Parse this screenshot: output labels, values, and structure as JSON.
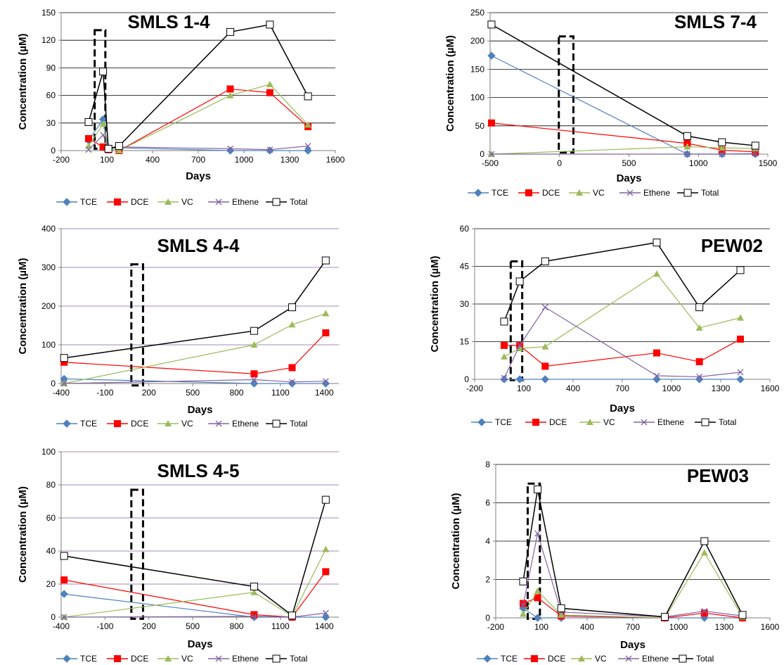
{
  "colors": {
    "TCE": "#4F81BD",
    "DCE": "#FF0000",
    "VC": "#9BBB59",
    "Ethene": "#8064A2",
    "Total": "#000000",
    "gridline_default": "#000000",
    "gridline_purple": "#8064A2"
  },
  "legend": [
    "TCE",
    "DCE",
    "VC",
    "Ethene",
    "Total"
  ],
  "chart_data": [
    {
      "type": "line",
      "title": "SMLS 1-4",
      "xlabel": "Days",
      "ylabel": "Concentration (µM)",
      "xlim": [
        -200,
        1600
      ],
      "ylim": [
        0,
        150
      ],
      "xticks": [
        -200,
        100,
        400,
        700,
        1000,
        1300,
        1600
      ],
      "yticks": [
        0,
        30,
        60,
        90,
        120,
        150
      ],
      "grid": "horizontal",
      "legend_position": "bottom",
      "treatment_window": {
        "x": [
          20,
          90
        ],
        "y": [
          2,
          131
        ]
      },
      "series": [
        {
          "name": "TCE",
          "points": [
            [
              -20,
              11
            ],
            [
              75,
              34
            ],
            [
              110,
              2
            ],
            [
              180,
              3
            ],
            [
              910,
              0
            ],
            [
              1170,
              0
            ],
            [
              1420,
              0
            ]
          ]
        },
        {
          "name": "DCE",
          "points": [
            [
              -20,
              13
            ],
            [
              75,
              4
            ],
            [
              110,
              1
            ],
            [
              180,
              0
            ],
            [
              910,
              67
            ],
            [
              1170,
              63
            ],
            [
              1420,
              26
            ]
          ]
        },
        {
          "name": "VC",
          "points": [
            [
              -20,
              5
            ],
            [
              75,
              29
            ],
            [
              110,
              1
            ],
            [
              180,
              0
            ],
            [
              910,
              60
            ],
            [
              1170,
              72
            ],
            [
              1420,
              28
            ]
          ]
        },
        {
          "name": "Ethene",
          "points": [
            [
              -20,
              1
            ],
            [
              75,
              17
            ],
            [
              110,
              2
            ],
            [
              180,
              4
            ],
            [
              910,
              2
            ],
            [
              1170,
              1
            ],
            [
              1420,
              5
            ]
          ]
        },
        {
          "name": "Total",
          "points": [
            [
              -20,
              31
            ],
            [
              75,
              86
            ],
            [
              110,
              2
            ],
            [
              180,
              5
            ],
            [
              910,
              129
            ],
            [
              1170,
              137
            ],
            [
              1420,
              59
            ]
          ]
        }
      ]
    },
    {
      "type": "line",
      "title": "SMLS 7-4",
      "xlabel": "Days",
      "ylabel": "Concentration (µM)",
      "xlim": [
        -500,
        1500
      ],
      "ylim": [
        0,
        250
      ],
      "xticks": [
        -500,
        0,
        500,
        1000,
        1500
      ],
      "yticks": [
        0,
        50,
        100,
        150,
        200,
        250
      ],
      "grid": "horizontal",
      "legend_position": "bottom",
      "treatment_window": {
        "x": [
          -5,
          100
        ],
        "y": [
          3,
          208
        ]
      },
      "series": [
        {
          "name": "TCE",
          "points": [
            [
              -490,
              174
            ],
            [
              920,
              0
            ],
            [
              1170,
              0
            ],
            [
              1410,
              0
            ]
          ]
        },
        {
          "name": "DCE",
          "points": [
            [
              -490,
              55
            ],
            [
              920,
              19
            ],
            [
              1170,
              7
            ],
            [
              1410,
              4
            ]
          ]
        },
        {
          "name": "VC",
          "points": [
            [
              -490,
              0
            ],
            [
              920,
              13
            ],
            [
              1170,
              11
            ],
            [
              1410,
              10
            ]
          ]
        },
        {
          "name": "Ethene",
          "points": [
            [
              -490,
              0
            ],
            [
              920,
              0
            ],
            [
              1170,
              0
            ],
            [
              1410,
              1
            ]
          ]
        },
        {
          "name": "Total",
          "points": [
            [
              -490,
              229
            ],
            [
              920,
              32
            ],
            [
              1170,
              21
            ],
            [
              1410,
              15
            ]
          ]
        }
      ]
    },
    {
      "type": "line",
      "title": "SMLS 4-4",
      "xlabel": "Days",
      "ylabel": "Concentration (µM)",
      "xlim": [
        -400,
        1500
      ],
      "ylim": [
        0,
        400
      ],
      "xticks": [
        -400,
        -100,
        200,
        500,
        800,
        1100,
        1400
      ],
      "yticks": [
        0,
        100,
        200,
        300,
        400
      ],
      "grid": "horizontal",
      "legend_position": "bottom",
      "treatment_window": {
        "x": [
          80,
          160
        ],
        "y": [
          -5,
          308
        ]
      },
      "series": [
        {
          "name": "TCE",
          "points": [
            [
              -380,
              12
            ],
            [
              920,
              0
            ],
            [
              1180,
              0
            ],
            [
              1410,
              0
            ]
          ]
        },
        {
          "name": "DCE",
          "points": [
            [
              -380,
              55
            ],
            [
              920,
              25
            ],
            [
              1180,
              41
            ],
            [
              1410,
              131
            ]
          ]
        },
        {
          "name": "VC",
          "points": [
            [
              -380,
              0
            ],
            [
              920,
              100
            ],
            [
              1180,
              152
            ],
            [
              1410,
              181
            ]
          ]
        },
        {
          "name": "Ethene",
          "points": [
            [
              -380,
              0
            ],
            [
              920,
              10
            ],
            [
              1180,
              4
            ],
            [
              1410,
              6
            ]
          ]
        },
        {
          "name": "Total",
          "points": [
            [
              -380,
              66
            ],
            [
              920,
              136
            ],
            [
              1180,
              197
            ],
            [
              1410,
              318
            ]
          ]
        }
      ]
    },
    {
      "type": "line",
      "title": "PEW02",
      "xlabel": "Days",
      "ylabel": "Concentration (µM)",
      "xlim": [
        -200,
        1600
      ],
      "ylim": [
        0,
        60
      ],
      "xticks": [
        -200,
        100,
        400,
        700,
        1000,
        1300,
        1600
      ],
      "yticks": [
        0,
        15,
        30,
        45,
        60
      ],
      "grid": "horizontal",
      "legend_position": "bottom",
      "treatment_window": {
        "x": [
          20,
          90
        ],
        "y": [
          -0.3,
          47
        ]
      },
      "series": [
        {
          "name": "TCE",
          "points": [
            [
              -20,
              0
            ],
            [
              75,
              0
            ],
            [
              230,
              0
            ],
            [
              910,
              0
            ],
            [
              1170,
              0
            ],
            [
              1420,
              0
            ]
          ]
        },
        {
          "name": "DCE",
          "points": [
            [
              -20,
              13.5
            ],
            [
              75,
              13.5
            ],
            [
              230,
              5.2
            ],
            [
              910,
              10.5
            ],
            [
              1170,
              7
            ],
            [
              1420,
              16
            ]
          ]
        },
        {
          "name": "VC",
          "points": [
            [
              -20,
              9
            ],
            [
              75,
              12.3
            ],
            [
              230,
              13
            ],
            [
              910,
              42
            ],
            [
              1170,
              20.5
            ],
            [
              1420,
              24.5
            ]
          ]
        },
        {
          "name": "Ethene",
          "points": [
            [
              -20,
              0.5
            ],
            [
              75,
              13.5
            ],
            [
              230,
              28.7
            ],
            [
              910,
              1.4
            ],
            [
              1170,
              1
            ],
            [
              1420,
              2.8
            ]
          ]
        },
        {
          "name": "Total",
          "points": [
            [
              -20,
              23
            ],
            [
              75,
              39
            ],
            [
              230,
              47
            ],
            [
              910,
              54.5
            ],
            [
              1170,
              28.7
            ],
            [
              1420,
              43.5
            ]
          ]
        }
      ]
    },
    {
      "type": "line",
      "title": "SMLS 4-5",
      "xlabel": "Days",
      "ylabel": "Concentration (µM)",
      "xlim": [
        -400,
        1500
      ],
      "ylim": [
        0,
        100
      ],
      "xticks": [
        -400,
        -100,
        200,
        500,
        800,
        1100,
        1400
      ],
      "yticks": [
        0,
        20,
        40,
        60,
        80,
        100
      ],
      "grid": "horizontal",
      "legend_position": "bottom",
      "treatment_window": {
        "x": [
          80,
          160
        ],
        "y": [
          -1,
          77
        ]
      },
      "series": [
        {
          "name": "TCE",
          "points": [
            [
              -380,
              14
            ],
            [
              920,
              0
            ],
            [
              1180,
              0
            ],
            [
              1410,
              0
            ]
          ]
        },
        {
          "name": "DCE",
          "points": [
            [
              -380,
              22.5
            ],
            [
              920,
              1.5
            ],
            [
              1180,
              0
            ],
            [
              1410,
              27.5
            ]
          ]
        },
        {
          "name": "VC",
          "points": [
            [
              -380,
              0
            ],
            [
              920,
              15
            ],
            [
              1180,
              0.5
            ],
            [
              1410,
              41
            ]
          ]
        },
        {
          "name": "Ethene",
          "points": [
            [
              -380,
              0
            ],
            [
              920,
              0.5
            ],
            [
              1180,
              0
            ],
            [
              1410,
              2.5
            ]
          ]
        },
        {
          "name": "Total",
          "points": [
            [
              -380,
              37
            ],
            [
              920,
              18.5
            ],
            [
              1180,
              1
            ],
            [
              1410,
              71
            ]
          ]
        }
      ]
    },
    {
      "type": "line",
      "title": "PEW03",
      "xlabel": "Days",
      "ylabel": "Concentration (µM)",
      "xlim": [
        -200,
        1600
      ],
      "ylim": [
        0,
        8
      ],
      "xticks": [
        -200,
        100,
        400,
        700,
        1000,
        1300,
        1600
      ],
      "yticks": [
        0,
        2,
        4,
        6,
        8
      ],
      "grid": "horizontal",
      "legend_position": "bottom",
      "treatment_window": {
        "x": [
          10,
          90
        ],
        "y": [
          -0.05,
          7
        ]
      },
      "series": [
        {
          "name": "TCE",
          "points": [
            [
              -20,
              0.5
            ],
            [
              75,
              0
            ],
            [
              230,
              0
            ],
            [
              910,
              0
            ],
            [
              1170,
              0
            ],
            [
              1420,
              0
            ]
          ]
        },
        {
          "name": "DCE",
          "points": [
            [
              -20,
              0.75
            ],
            [
              75,
              1.05
            ],
            [
              230,
              0.1
            ],
            [
              910,
              0
            ],
            [
              1170,
              0.25
            ],
            [
              1420,
              0
            ]
          ]
        },
        {
          "name": "VC",
          "points": [
            [
              -20,
              0.2
            ],
            [
              75,
              1.4
            ],
            [
              230,
              0.15
            ],
            [
              910,
              0
            ],
            [
              1170,
              3.4
            ],
            [
              1420,
              0.05
            ]
          ]
        },
        {
          "name": "Ethene",
          "points": [
            [
              -20,
              0.65
            ],
            [
              75,
              4.4
            ],
            [
              230,
              0.3
            ],
            [
              910,
              0.05
            ],
            [
              1170,
              0.35
            ],
            [
              1420,
              0.1
            ]
          ]
        },
        {
          "name": "Total",
          "points": [
            [
              -20,
              1.9
            ],
            [
              75,
              6.7
            ],
            [
              230,
              0.5
            ],
            [
              910,
              0.05
            ],
            [
              1170,
              4.0
            ],
            [
              1420,
              0.15
            ]
          ]
        }
      ]
    }
  ]
}
